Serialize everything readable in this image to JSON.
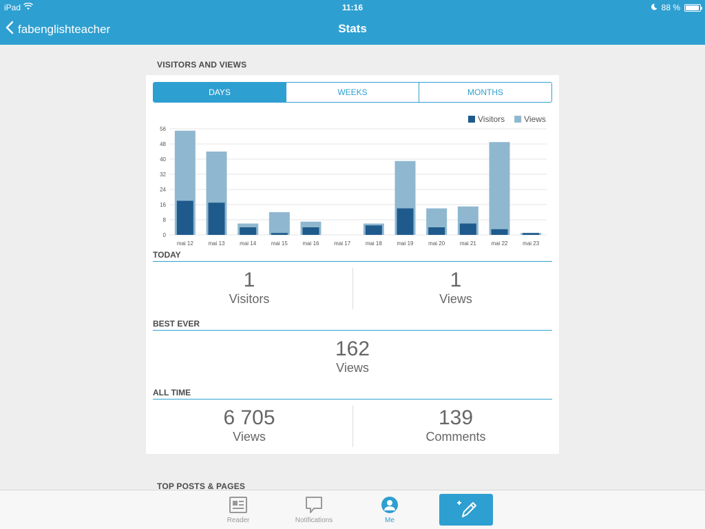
{
  "status_bar": {
    "device": "iPad",
    "time": "11:16",
    "battery": "88 %",
    "battery_level": 0.88
  },
  "nav": {
    "back_label": "fabenglishteacher",
    "title": "Stats"
  },
  "section": {
    "visitors_views": "VISITORS AND VIEWS",
    "top_posts": "TOP POSTS & PAGES"
  },
  "tabs": [
    {
      "label": "DAYS",
      "active": true
    },
    {
      "label": "WEEKS",
      "active": false
    },
    {
      "label": "MONTHS",
      "active": false
    }
  ],
  "chart_data": {
    "type": "bar",
    "categories": [
      "mai 12",
      "mai 13",
      "mai 14",
      "mai 15",
      "mai 16",
      "mai 17",
      "mai 18",
      "mai 19",
      "mai 20",
      "mai 21",
      "mai 22",
      "mai 23"
    ],
    "series": [
      {
        "name": "Visitors",
        "color": "#1f5a8c",
        "values": [
          18,
          17,
          4,
          1,
          4,
          0,
          5,
          14,
          4,
          6,
          3,
          1
        ]
      },
      {
        "name": "Views",
        "color": "#8fb8d0",
        "values": [
          55,
          44,
          6,
          12,
          7,
          0,
          6,
          39,
          14,
          15,
          49,
          1
        ]
      }
    ],
    "yticks": [
      0,
      8,
      16,
      24,
      32,
      40,
      48,
      56
    ],
    "ylim": [
      0,
      56
    ],
    "legend_position": "top-right",
    "grid": true
  },
  "today": {
    "title": "TODAY",
    "visitors_value": "1",
    "visitors_label": "Visitors",
    "views_value": "1",
    "views_label": "Views"
  },
  "best_ever": {
    "title": "BEST EVER",
    "value": "162",
    "label": "Views"
  },
  "all_time": {
    "title": "ALL TIME",
    "views_value": "6 705",
    "views_label": "Views",
    "comments_value": "139",
    "comments_label": "Comments"
  },
  "tabbar": {
    "reader": "Reader",
    "notifications": "Notifications",
    "me": "Me"
  },
  "colors": {
    "accent": "#2e9fd1",
    "visitors": "#1f5a8c",
    "views": "#8fb8d0"
  }
}
